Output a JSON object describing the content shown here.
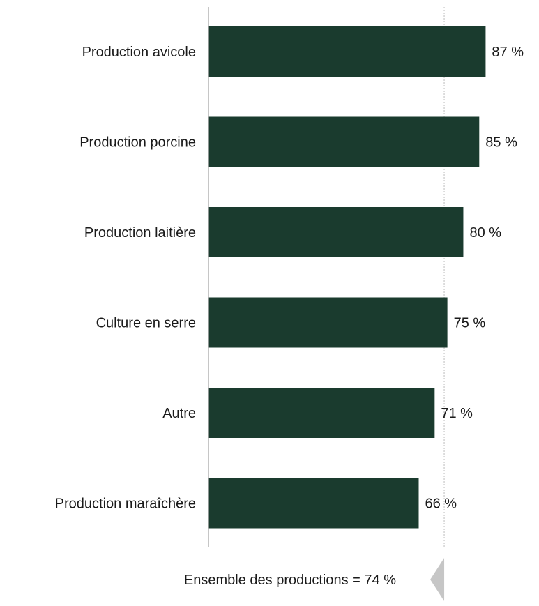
{
  "chart_data": {
    "type": "bar",
    "orientation": "horizontal",
    "categories": [
      "Production avicole",
      "Production porcine",
      "Production laitière",
      "Culture en serre",
      "Autre",
      "Production maraîchère"
    ],
    "values": [
      87,
      85,
      80,
      75,
      71,
      66
    ],
    "value_labels": [
      "87 %",
      "85 %",
      "80 %",
      "75 %",
      "71 %",
      "66 %"
    ],
    "xlim": [
      0,
      88
    ],
    "reference_line": {
      "value": 74,
      "label": "Ensemble des productions = 74 %"
    },
    "title": "",
    "xlabel": "",
    "ylabel": "",
    "grid": false,
    "colors": {
      "bar": "#1a3b2e",
      "axis": "#b3b3b3",
      "reference_line": "#bdbdbd",
      "reference_marker": "#c6c6c6"
    }
  }
}
